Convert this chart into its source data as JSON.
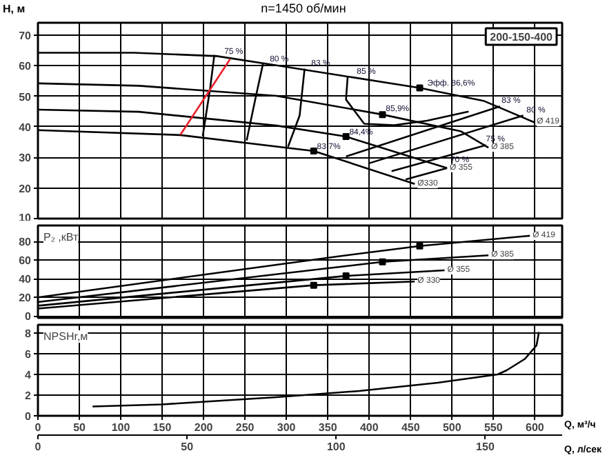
{
  "chart_data": [
    {
      "type": "line",
      "title": "n=1450 об/мин",
      "ylabel": "H, м",
      "xlim": [
        0,
        633
      ],
      "ylim": [
        10,
        74
      ],
      "yticks": [
        10,
        20,
        30,
        40,
        50,
        60,
        70
      ],
      "tick_labels": "y",
      "grid": true,
      "series": [
        {
          "name": "Ø 419",
          "color": "#000000",
          "x": [
            0,
            116,
            216,
            288,
            461,
            538,
            599
          ],
          "values": [
            64.2,
            64.2,
            63.1,
            60.1,
            52.7,
            48.5,
            41.5
          ]
        },
        {
          "name": "Ø 385",
          "color": "#000000",
          "x": [
            0,
            122,
            288,
            416,
            511,
            544
          ],
          "values": [
            54.2,
            53.4,
            50.1,
            44.0,
            38.5,
            33.2
          ]
        },
        {
          "name": "Ø 355",
          "color": "#000000",
          "x": [
            0,
            122,
            288,
            372,
            494
          ],
          "values": [
            45.6,
            44.9,
            40.4,
            36.8,
            26.5
          ]
        },
        {
          "name": "Ø330",
          "color": "#000000",
          "x": [
            0,
            172,
            333,
            455
          ],
          "values": [
            38.9,
            37.3,
            32.1,
            21.3
          ]
        },
        {
          "color": "#000000",
          "x": [
            213,
            208,
            199
          ],
          "values": [
            63.5,
            52.7,
            37.0
          ]
        },
        {
          "color": "#000000",
          "x": [
            272,
            263,
            252
          ],
          "values": [
            60.9,
            49.7,
            35.5
          ]
        },
        {
          "color": "#000000",
          "x": [
            322,
            316,
            302
          ],
          "values": [
            59.0,
            43.7,
            33.5
          ]
        },
        {
          "color": "#000000",
          "x": [
            374,
            372,
            394,
            430,
            470,
            520
          ],
          "values": [
            56.4,
            48.9,
            41.0,
            40.5,
            42.0,
            45.0
          ]
        },
        {
          "color": "#000000",
          "x": [
            372,
            558
          ],
          "values": [
            30.3,
            46.7
          ]
        },
        {
          "color": "#000000",
          "x": [
            399,
            586
          ],
          "values": [
            28.0,
            43.7
          ]
        },
        {
          "color": "#000000",
          "x": [
            427,
            541
          ],
          "values": [
            25.5,
            34.0
          ]
        },
        {
          "color": "#000000",
          "x": [
            444,
            494
          ],
          "values": [
            22.8,
            26.5
          ]
        },
        {
          "color": "#e8202a",
          "x": [
            172,
            232
          ],
          "values": [
            37.4,
            62.1
          ]
        },
        {
          "type": "scatter",
          "marker": "square",
          "color": "#000000",
          "x": [
            461,
            416,
            372,
            333
          ],
          "values": [
            52.7,
            44.0,
            36.8,
            32.1
          ]
        }
      ],
      "annotations": [
        "200-150-400",
        {
          "text": "75 %",
          "x": 225,
          "y": 64.4
        },
        {
          "text": "80 %",
          "x": 280,
          "y": 61.9
        },
        {
          "text": "83 %",
          "x": 330,
          "y": 60.5
        },
        {
          "text": "85 %",
          "x": 385,
          "y": 57.8
        },
        {
          "text": "Эфф. 86,6%",
          "x": 470,
          "y": 53.9
        },
        {
          "text": "85,9%",
          "x": 420,
          "y": 45.5
        },
        {
          "text": "84,4%",
          "x": 376,
          "y": 38.0
        },
        {
          "text": "83,7%",
          "x": 337,
          "y": 33.2
        },
        {
          "text": "83 %",
          "x": 560,
          "y": 48.4
        },
        {
          "text": "80 %",
          "x": 590,
          "y": 45.2
        },
        {
          "text": "75 %",
          "x": 541,
          "y": 35.8
        },
        {
          "text": "70 %",
          "x": 498,
          "y": 29.0
        }
      ]
    },
    {
      "type": "line",
      "ylabel": "P₂ ,кВт",
      "xlim": [
        0,
        633
      ],
      "ylim": [
        -2,
        97
      ],
      "yticks": [
        0,
        20,
        40,
        60,
        80
      ],
      "tick_labels": "y",
      "grid": true,
      "series": [
        {
          "name": "Ø 419",
          "color": "#000000",
          "x": [
            0,
            363,
            461,
            594
          ],
          "values": [
            20,
            64,
            75,
            86
          ]
        },
        {
          "name": "Ø 385",
          "color": "#000000",
          "x": [
            0,
            416,
            544
          ],
          "values": [
            15,
            58,
            65
          ]
        },
        {
          "name": "Ø 355",
          "color": "#000000",
          "x": [
            0,
            372,
            491
          ],
          "values": [
            11,
            43,
            49
          ]
        },
        {
          "name": "Ø 330",
          "color": "#000000",
          "x": [
            0,
            333,
            455
          ],
          "values": [
            8,
            33,
            37
          ]
        },
        {
          "type": "scatter",
          "marker": "square",
          "color": "#000000",
          "x": [
            461,
            416,
            372,
            333
          ],
          "values": [
            75,
            58,
            43,
            33
          ]
        }
      ]
    },
    {
      "type": "line",
      "ylabel": "NPSHr,м",
      "xlabel": "Q, м³/ч",
      "x2label": "Q, л/сек",
      "xlim": [
        0,
        633
      ],
      "xticks": [
        0,
        50,
        100,
        150,
        200,
        250,
        300,
        350,
        400,
        450,
        500,
        550,
        600
      ],
      "x2lim": [
        0,
        175.8
      ],
      "x2ticks": [
        0,
        50,
        100,
        150
      ],
      "ylim": [
        0,
        8.8
      ],
      "yticks": [
        0,
        2,
        4,
        6,
        8
      ],
      "grid": true,
      "series": [
        {
          "color": "#000000",
          "x": [
            66,
            150,
            288,
            388,
            483,
            555,
            566,
            588,
            602,
            605
          ],
          "values": [
            0.9,
            1.1,
            1.8,
            2.4,
            3.2,
            4.0,
            4.4,
            5.5,
            6.8,
            8.1
          ]
        }
      ]
    }
  ]
}
